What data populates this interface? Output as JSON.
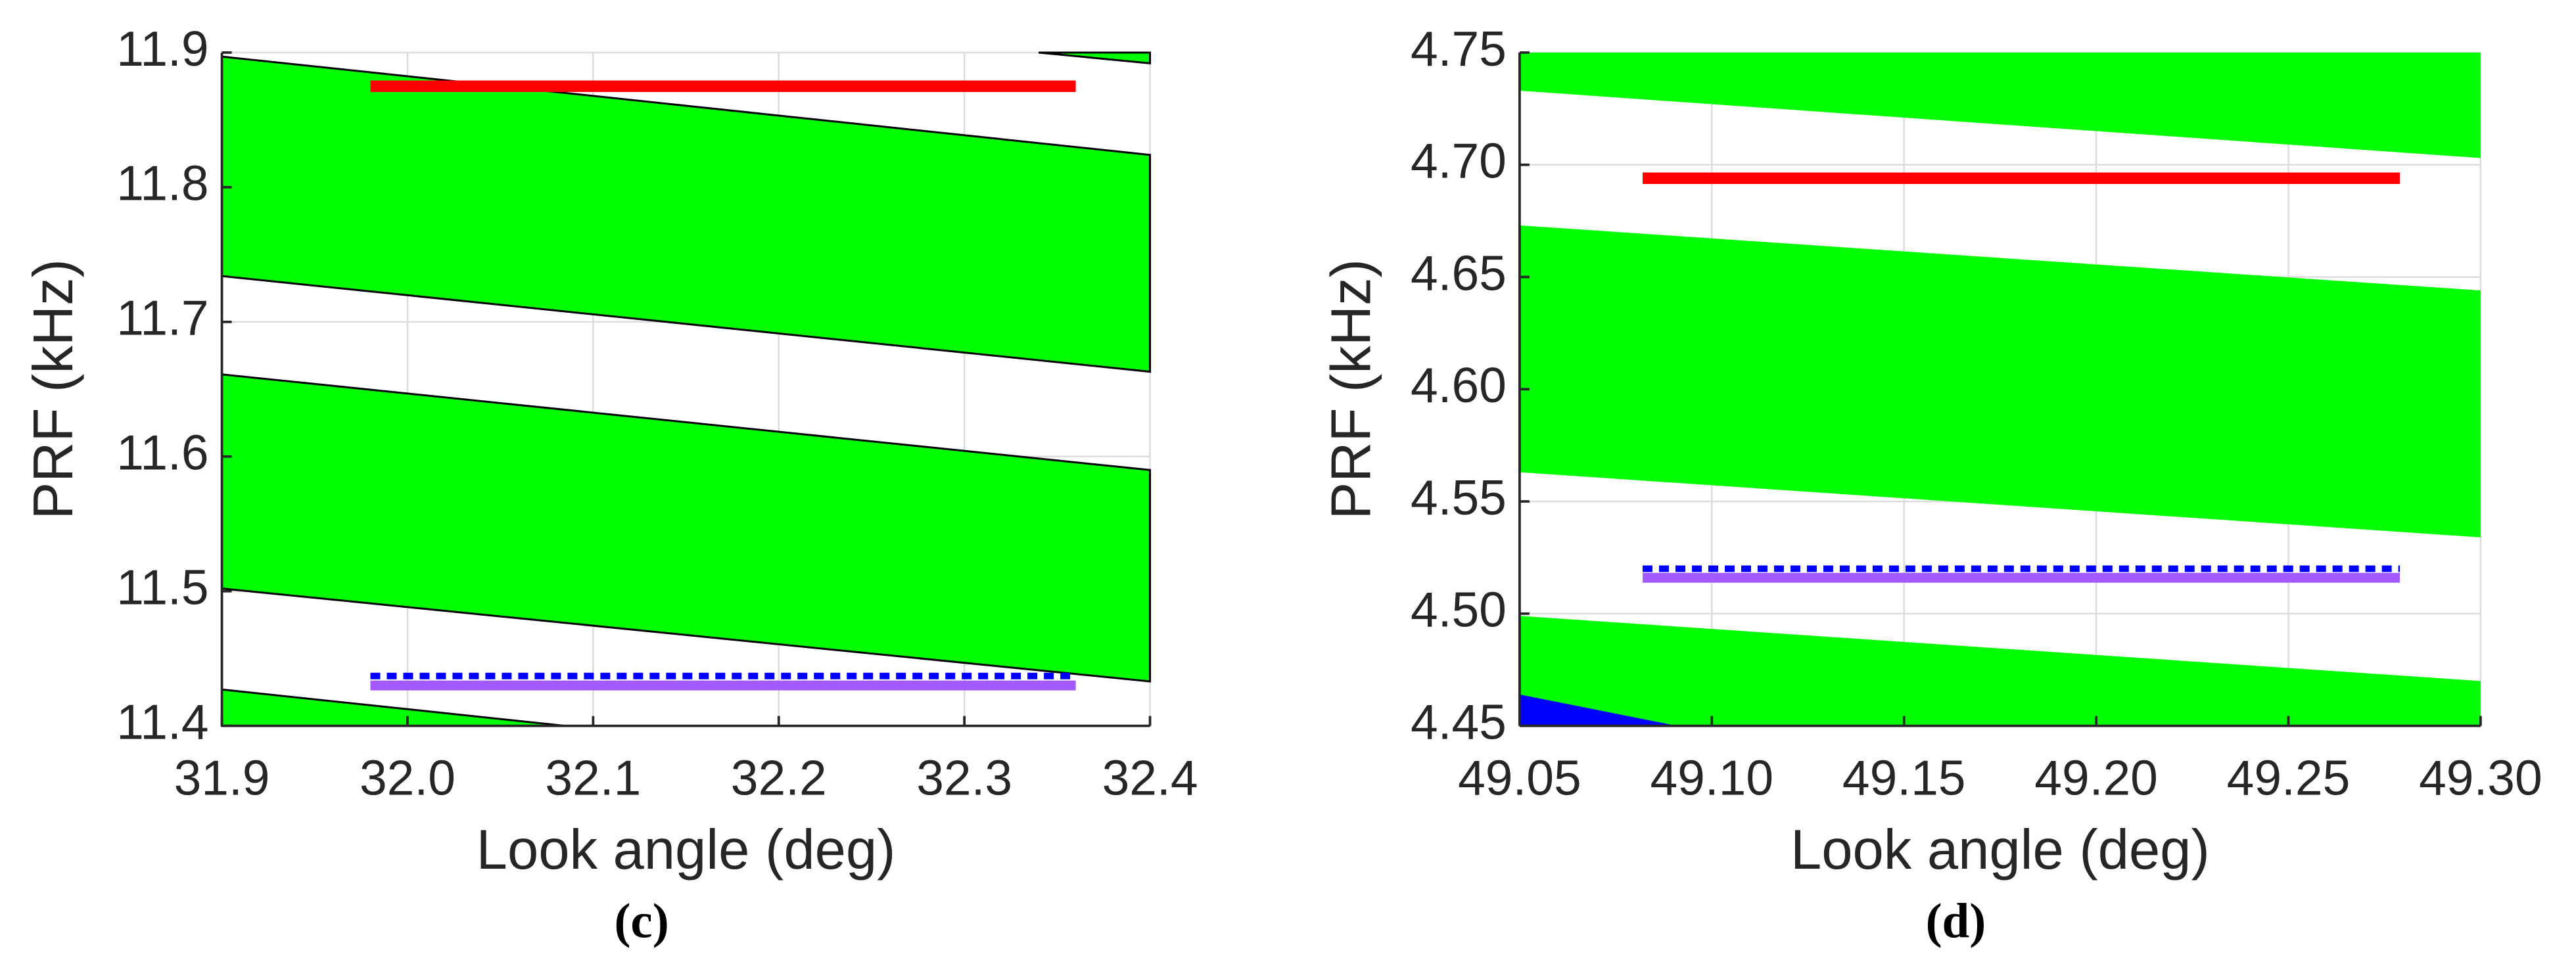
{
  "chart_data": [
    {
      "type": "region",
      "label": "(c)",
      "xlabel": "Look angle (deg)",
      "ylabel": "PRF (kHz)",
      "xlim": [
        31.9,
        32.4
      ],
      "ylim": [
        11.4,
        11.9
      ],
      "xticks": [
        31.9,
        {
          "value": 32,
          "label": "32.0"
        },
        32.1,
        32.2,
        32.3,
        32.4
      ],
      "yticks": [
        11.4,
        11.5,
        11.6,
        11.7,
        11.8,
        11.9
      ],
      "grid": true,
      "edgecolor": "#000000",
      "areas": [
        {
          "color": "#00ff00",
          "x": [
            31.9,
            32.4,
            32.4,
            31.9
          ],
          "y": [
            11.897,
            11.824,
            11.663,
            11.734
          ]
        },
        {
          "color": "#00ff00",
          "x": [
            31.9,
            32.4,
            32.4,
            31.9
          ],
          "y": [
            11.661,
            11.59,
            11.433,
            11.502
          ]
        },
        {
          "color": "#00ff00",
          "x": [
            31.9,
            32.085,
            31.9
          ],
          "y": [
            11.427,
            11.4,
            11.4
          ]
        },
        {
          "color": "#00ff00",
          "x": [
            32.34,
            32.4,
            32.4
          ],
          "y": [
            11.9,
            11.9,
            11.892
          ]
        }
      ],
      "series": [
        {
          "color": "#ff0000",
          "x": [
            31.98,
            32.36
          ],
          "values": [
            11.875,
            11.875
          ]
        },
        {
          "color": "#a35bff",
          "x": [
            31.98,
            32.36
          ],
          "values": [
            11.43,
            11.43
          ]
        },
        {
          "color": "#0000ff",
          "style": "dotted",
          "x": [
            31.98,
            32.36
          ],
          "values": [
            11.437,
            11.437
          ]
        }
      ]
    },
    {
      "type": "region",
      "label": "(d)",
      "xlabel": "Look angle (deg)",
      "ylabel": "PRF (kHz)",
      "xlim": [
        49.05,
        49.3
      ],
      "ylim": [
        4.45,
        4.75
      ],
      "xticks": [
        49.05,
        {
          "value": 49.1,
          "label": "49.10"
        },
        49.15,
        {
          "value": 49.2,
          "label": "49.20"
        },
        49.25,
        {
          "value": 49.3,
          "label": "49.30"
        }
      ],
      "yticks": [
        4.45,
        {
          "value": 4.5,
          "label": "4.50"
        },
        4.55,
        {
          "value": 4.6,
          "label": "4.60"
        },
        4.65,
        {
          "value": 4.7,
          "label": "4.70"
        },
        4.75
      ],
      "grid": true,
      "areas": [
        {
          "color": "#00ff00",
          "x": [
            49.05,
            49.3,
            49.3,
            49.05
          ],
          "y": [
            4.75,
            4.75,
            4.703,
            4.733
          ]
        },
        {
          "color": "#00ff00",
          "x": [
            49.05,
            49.3,
            49.3,
            49.05
          ],
          "y": [
            4.673,
            4.644,
            4.534,
            4.563
          ]
        },
        {
          "color": "#00ff00",
          "x": [
            49.05,
            49.3,
            49.3,
            49.05
          ],
          "y": [
            4.499,
            4.47,
            4.45,
            4.45
          ]
        },
        {
          "color": "#0000ff",
          "x": [
            49.05,
            49.091,
            49.05
          ],
          "y": [
            4.464,
            4.45,
            4.45
          ]
        }
      ],
      "series": [
        {
          "color": "#ff0000",
          "x": [
            49.082,
            49.279
          ],
          "values": [
            4.694,
            4.694
          ]
        },
        {
          "color": "#a35bff",
          "x": [
            49.082,
            49.279
          ],
          "values": [
            4.516,
            4.516
          ]
        },
        {
          "color": "#0000ff",
          "style": "dotted",
          "x": [
            49.082,
            49.279
          ],
          "values": [
            4.52,
            4.52
          ]
        }
      ]
    }
  ]
}
